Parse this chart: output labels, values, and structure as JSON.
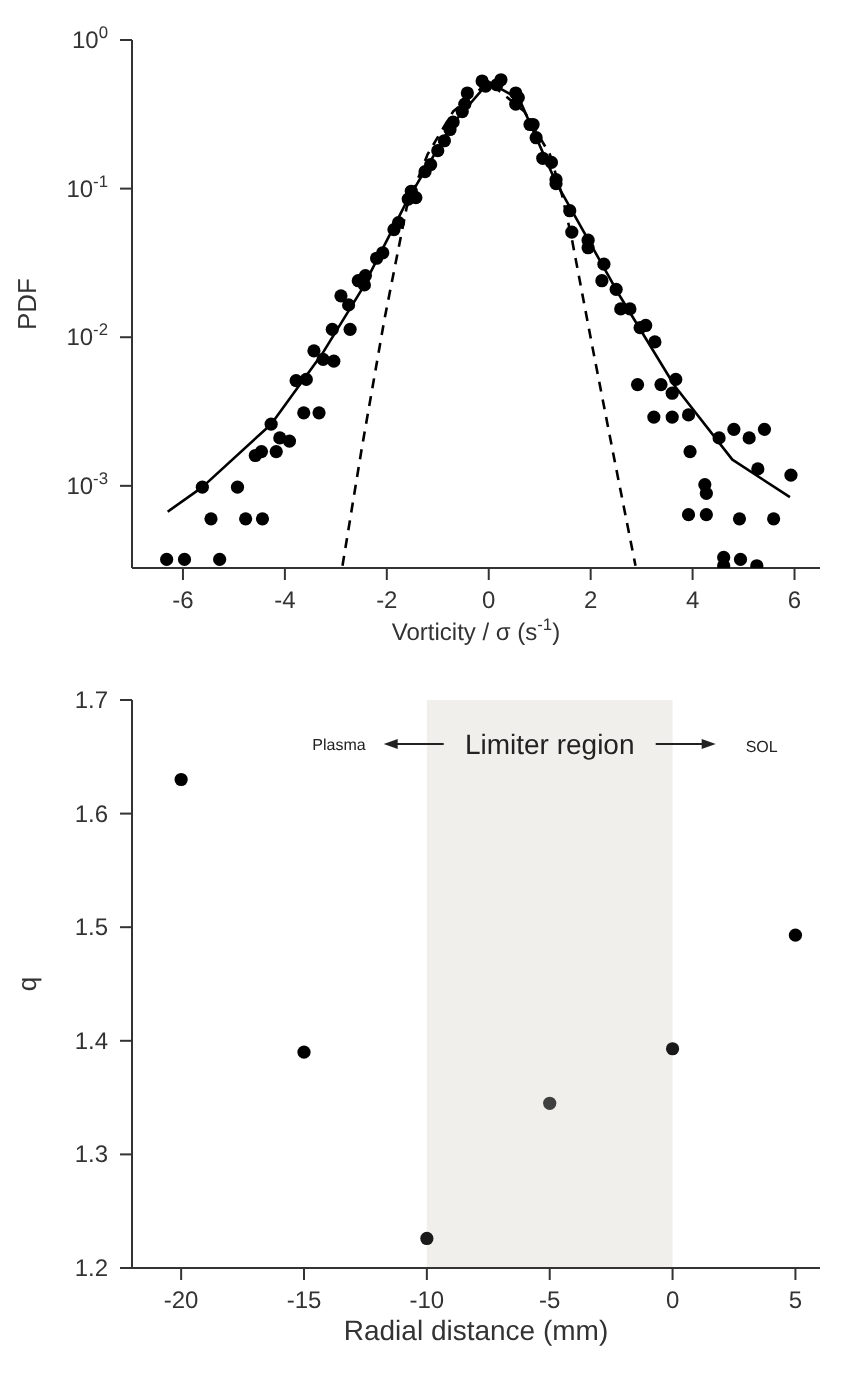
{
  "chart_data": [
    {
      "type": "scatter",
      "xlabel": "Vorticity / σ (s$^{-1}$)",
      "ylabel": "PDF",
      "log": "y",
      "xlim": [
        -7,
        6.5
      ],
      "xticks": [
        -6,
        -4,
        -2,
        0,
        2,
        4,
        6
      ],
      "ylim": [
        0.00028,
        1
      ],
      "yticks": [
        {
          "value": 0.001,
          "label": "10$^{-3}$"
        },
        {
          "value": 0.01,
          "label": "10$^{-2}$"
        },
        {
          "value": 0.1,
          "label": "10$^{-1}$"
        },
        {
          "value": 1,
          "label": "10$^{0}$"
        }
      ],
      "series": [
        {
          "type": "scatter",
          "color": "#000000",
          "marker": "circle",
          "x": [
            -6.32,
            -5.97,
            -5.28,
            -5.45,
            -4.77,
            -4.44,
            -5.62,
            -4.93,
            -4.58,
            -4.46,
            -4.17,
            -4.1,
            -3.91,
            -4.27,
            -3.63,
            -3.33,
            -3.78,
            -3.58,
            -3.43,
            -3.25,
            -3.04,
            -3.07,
            -2.72,
            -2.9,
            -2.75,
            -2.56,
            -2.42,
            -2.44,
            -2.2,
            -2.08,
            -1.86,
            -1.77,
            -1.58,
            -1.52,
            -1.43,
            -1.25,
            -1.14,
            -1.0,
            -0.87,
            -0.76,
            -0.7,
            -0.52,
            -0.47,
            -0.42,
            -0.13,
            -0.06,
            0.24,
            0.16,
            0.53,
            0.58,
            0.53,
            0.81,
            0.87,
            0.93,
            1.06,
            1.23,
            1.32,
            1.32,
            1.59,
            1.63,
            1.95,
            1.95,
            2.26,
            2.22,
            2.5,
            2.59,
            2.77,
            2.97,
            3.08,
            3.26,
            2.92,
            3.38,
            3.67,
            3.6,
            3.24,
            3.6,
            3.92,
            3.95,
            4.52,
            4.81,
            5.11,
            5.41,
            5.28,
            5.93,
            4.24,
            4.27,
            3.92,
            4.27,
            4.92,
            5.59,
            4.61,
            4.61,
            4.94,
            5.26
          ],
          "values": [
            0.00032,
            0.00032,
            0.00032,
            0.0006,
            0.0006,
            0.0006,
            0.00098,
            0.00098,
            0.0016,
            0.0017,
            0.0017,
            0.0021,
            0.002,
            0.0026,
            0.0031,
            0.0031,
            0.0051,
            0.0052,
            0.0081,
            0.0071,
            0.0069,
            0.0113,
            0.0113,
            0.019,
            0.0165,
            0.024,
            0.026,
            0.0225,
            0.034,
            0.037,
            0.053,
            0.059,
            0.085,
            0.096,
            0.087,
            0.13,
            0.145,
            0.18,
            0.21,
            0.25,
            0.28,
            0.33,
            0.37,
            0.44,
            0.53,
            0.49,
            0.54,
            0.5,
            0.44,
            0.41,
            0.37,
            0.27,
            0.27,
            0.22,
            0.16,
            0.15,
            0.115,
            0.108,
            0.071,
            0.051,
            0.045,
            0.04,
            0.031,
            0.024,
            0.021,
            0.0155,
            0.0155,
            0.0116,
            0.012,
            0.0093,
            0.0048,
            0.0048,
            0.0052,
            0.0042,
            0.0029,
            0.0029,
            0.003,
            0.0017,
            0.0021,
            0.0024,
            0.0021,
            0.0024,
            0.0013,
            0.00118,
            0.00102,
            0.00089,
            0.00064,
            0.00064,
            0.0006,
            0.0006,
            0.00033,
            0.00029,
            0.00032,
            0.00029
          ]
        },
        {
          "type": "line",
          "color": "#000000",
          "marker": "none",
          "line_style": "solid",
          "x": [
            -6.3,
            -5.62,
            -4.27,
            -3.25,
            -2.49,
            -1.6,
            -0.72,
            0,
            0.6,
            1.32,
            2.57,
            3.65,
            4.78,
            5.91
          ],
          "values": [
            0.00067,
            0.00098,
            0.0026,
            0.0079,
            0.021,
            0.083,
            0.27,
            0.52,
            0.4,
            0.11,
            0.019,
            0.0047,
            0.0015,
            0.00084
          ]
        },
        {
          "type": "line",
          "color": "#000000",
          "marker": "none",
          "line_style": "dashed",
          "x": [
            -2.87,
            -2.49,
            -2.05,
            -1.61,
            -1.2,
            -0.7,
            0,
            0.7,
            1.2,
            1.44,
            1.63,
            2.01,
            2.45,
            2.88
          ],
          "values": [
            0.00029,
            0.0018,
            0.013,
            0.075,
            0.17,
            0.33,
            0.52,
            0.33,
            0.17,
            0.09,
            0.046,
            0.0095,
            0.0016,
            0.00029
          ]
        }
      ]
    },
    {
      "type": "scatter",
      "xlabel": "Radial distance (mm)",
      "ylabel": "q",
      "xlim": [
        -22,
        6
      ],
      "xticks": [
        -20,
        -15,
        -10,
        -5,
        0,
        5
      ],
      "ylim": [
        1.2,
        1.7
      ],
      "yticks": [
        1.2,
        1.3,
        1.4,
        1.5,
        1.6,
        1.7
      ],
      "marker": "circle",
      "x": [
        -20,
        -15,
        -10,
        -5,
        0,
        5
      ],
      "values": [
        1.63,
        1.39,
        1.226,
        1.345,
        1.393,
        1.493
      ],
      "colors": [
        "#000000",
        "#000000",
        "#1a1a1a",
        "#404040",
        "#1a1a1a",
        "#000000"
      ],
      "bands": [
        {
          "axis": "x",
          "from": -10,
          "to": 0,
          "label": "Limiter region",
          "color": "#f0efeb"
        }
      ],
      "annotations": [
        "Plasma",
        "SOL"
      ]
    }
  ]
}
